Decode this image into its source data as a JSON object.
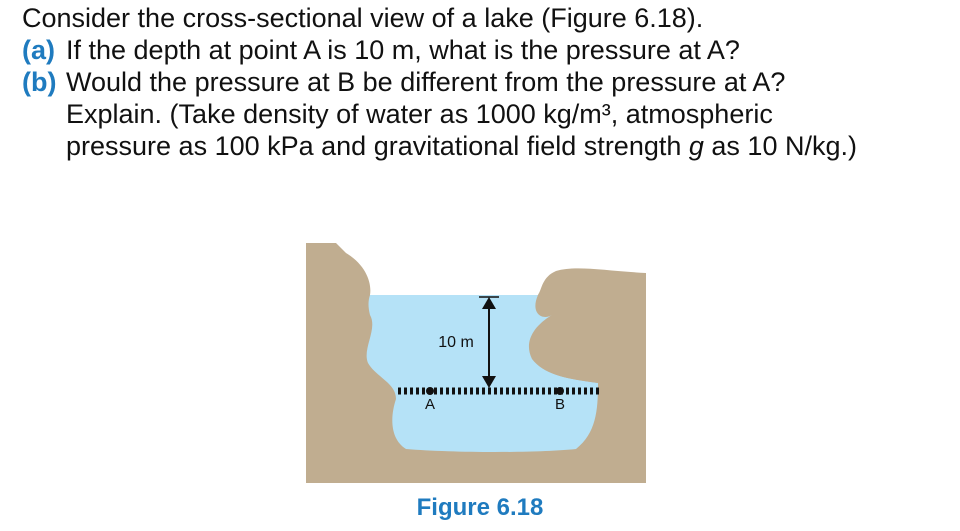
{
  "question": {
    "intro": "Consider the cross-sectional view of a lake (Figure 6.18).",
    "part_a_tag": "(a)",
    "part_a_text": "If the depth at point A is 10 m, what is the pressure at A?",
    "part_b_tag": "(b)",
    "part_b_text": "Would the pressure at B be different from the pressure at A?",
    "part_b_line2": "Explain. (Take density of water as 1000 kg/m³, atmospheric",
    "part_b_line3_pre": "pressure as 100 kPa and gravitational field strength ",
    "part_b_line3_var": "g",
    "part_b_line3_post": " as 10 N/kg.)"
  },
  "figure": {
    "depth_label": "10 m",
    "point_a_label": "A",
    "point_b_label": "B",
    "caption": "Figure 6.18",
    "colors": {
      "rock": "#c0ad90",
      "water": "#b5e2f7",
      "text_blue": "#1f7bbf"
    }
  }
}
